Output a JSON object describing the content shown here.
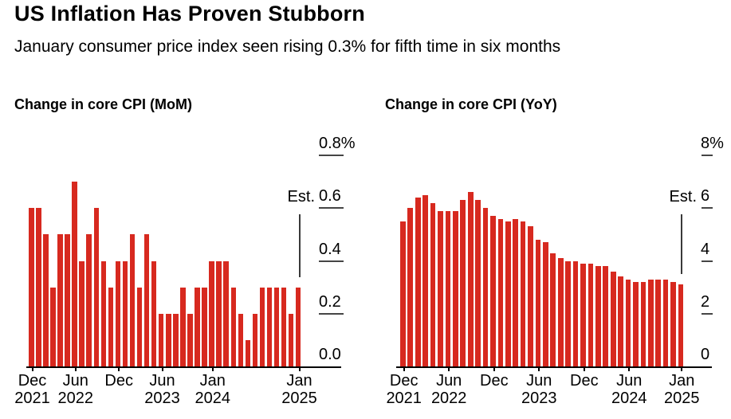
{
  "header": {
    "title": "US Inflation Has Proven Stubborn",
    "subtitle": "January consumer price index seen rising 0.3% for fifth time in six months"
  },
  "colors": {
    "bar_red": "#d7291f",
    "text": "#000000",
    "axis_line": "#000000",
    "tick_dash": "#454545",
    "est_line": "#3a3a3a"
  },
  "chart_data": [
    {
      "type": "bar",
      "title": "Change in core CPI (MoM)",
      "unit": "%",
      "ylim": [
        0,
        0.8
      ],
      "ytick_labels": [
        "0.8%",
        "0.6",
        "0.4",
        "0.2",
        "0.0"
      ],
      "ytick_values": [
        0.8,
        0.6,
        0.4,
        0.2,
        0.0
      ],
      "grid": "tick-dashes-right",
      "legend": "none",
      "x": [
        "Dec 2021",
        "Jan 2022",
        "Feb 2022",
        "Mar 2022",
        "Apr 2022",
        "May 2022",
        "Jun 2022",
        "Jul 2022",
        "Aug 2022",
        "Sep 2022",
        "Oct 2022",
        "Nov 2022",
        "Dec 2022",
        "Jan 2023",
        "Feb 2023",
        "Mar 2023",
        "Apr 2023",
        "May 2023",
        "Jun 2023",
        "Jul 2023",
        "Aug 2023",
        "Sep 2023",
        "Oct 2023",
        "Nov 2023",
        "Dec 2023",
        "Jan 2024",
        "Feb 2024",
        "Mar 2024",
        "Apr 2024",
        "May 2024",
        "Jun 2024",
        "Jul 2024",
        "Aug 2024",
        "Sep 2024",
        "Oct 2024",
        "Nov 2024",
        "Dec 2024",
        "Jan 2025"
      ],
      "values": [
        0.6,
        0.6,
        0.5,
        0.3,
        0.5,
        0.5,
        0.7,
        0.4,
        0.5,
        0.6,
        0.4,
        0.3,
        0.4,
        0.4,
        0.5,
        0.3,
        0.5,
        0.4,
        0.2,
        0.2,
        0.2,
        0.3,
        0.2,
        0.3,
        0.3,
        0.4,
        0.4,
        0.4,
        0.3,
        0.2,
        0.1,
        0.2,
        0.3,
        0.3,
        0.3,
        0.3,
        0.2,
        0.3
      ],
      "xticks": [
        {
          "month": "Dec",
          "year": "2021",
          "index": 0
        },
        {
          "month": "Jun",
          "year": "2022",
          "index": 6
        },
        {
          "month": "Dec",
          "year": "",
          "index": 12
        },
        {
          "month": "Jun",
          "year": "2023",
          "index": 18
        },
        {
          "month": "Jan",
          "year": "2024",
          "index": 25
        },
        {
          "month": "Jan",
          "year": "2025",
          "index": 37
        }
      ],
      "annotation": {
        "label": "Est.",
        "index": 37,
        "value": 0.3
      }
    },
    {
      "type": "bar",
      "title": "Change in core CPI (YoY)",
      "unit": "%",
      "ylim": [
        0,
        8
      ],
      "ytick_labels": [
        "8%",
        "6",
        "4",
        "2",
        "0"
      ],
      "ytick_values": [
        8,
        6,
        4,
        2,
        0
      ],
      "grid": "tick-dashes-right",
      "legend": "none",
      "x": [
        "Dec 2021",
        "Jan 2022",
        "Feb 2022",
        "Mar 2022",
        "Apr 2022",
        "May 2022",
        "Jun 2022",
        "Jul 2022",
        "Aug 2022",
        "Sep 2022",
        "Oct 2022",
        "Nov 2022",
        "Dec 2022",
        "Jan 2023",
        "Feb 2023",
        "Mar 2023",
        "Apr 2023",
        "May 2023",
        "Jun 2023",
        "Jul 2023",
        "Aug 2023",
        "Sep 2023",
        "Oct 2023",
        "Nov 2023",
        "Dec 2023",
        "Jan 2024",
        "Feb 2024",
        "Mar 2024",
        "Apr 2024",
        "May 2024",
        "Jun 2024",
        "Jul 2024",
        "Aug 2024",
        "Sep 2024",
        "Oct 2024",
        "Nov 2024",
        "Dec 2024",
        "Jan 2025"
      ],
      "values": [
        5.5,
        6.0,
        6.4,
        6.5,
        6.2,
        5.9,
        5.9,
        5.9,
        6.3,
        6.6,
        6.3,
        6.0,
        5.7,
        5.6,
        5.5,
        5.6,
        5.5,
        5.3,
        4.8,
        4.7,
        4.3,
        4.1,
        4.0,
        4.0,
        3.9,
        3.9,
        3.8,
        3.8,
        3.6,
        3.4,
        3.3,
        3.2,
        3.2,
        3.3,
        3.3,
        3.3,
        3.2,
        3.1
      ],
      "xticks": [
        {
          "month": "Dec",
          "year": "2021",
          "index": 0
        },
        {
          "month": "Jun",
          "year": "2022",
          "index": 6
        },
        {
          "month": "Dec",
          "year": "",
          "index": 12
        },
        {
          "month": "Jun",
          "year": "2023",
          "index": 18
        },
        {
          "month": "Dec",
          "year": "",
          "index": 24
        },
        {
          "month": "Jun",
          "year": "2024",
          "index": 30
        },
        {
          "month": "Jan",
          "year": "2025",
          "index": 37
        }
      ],
      "annotation": {
        "label": "Est.",
        "index": 37,
        "value": 3.1
      }
    }
  ]
}
